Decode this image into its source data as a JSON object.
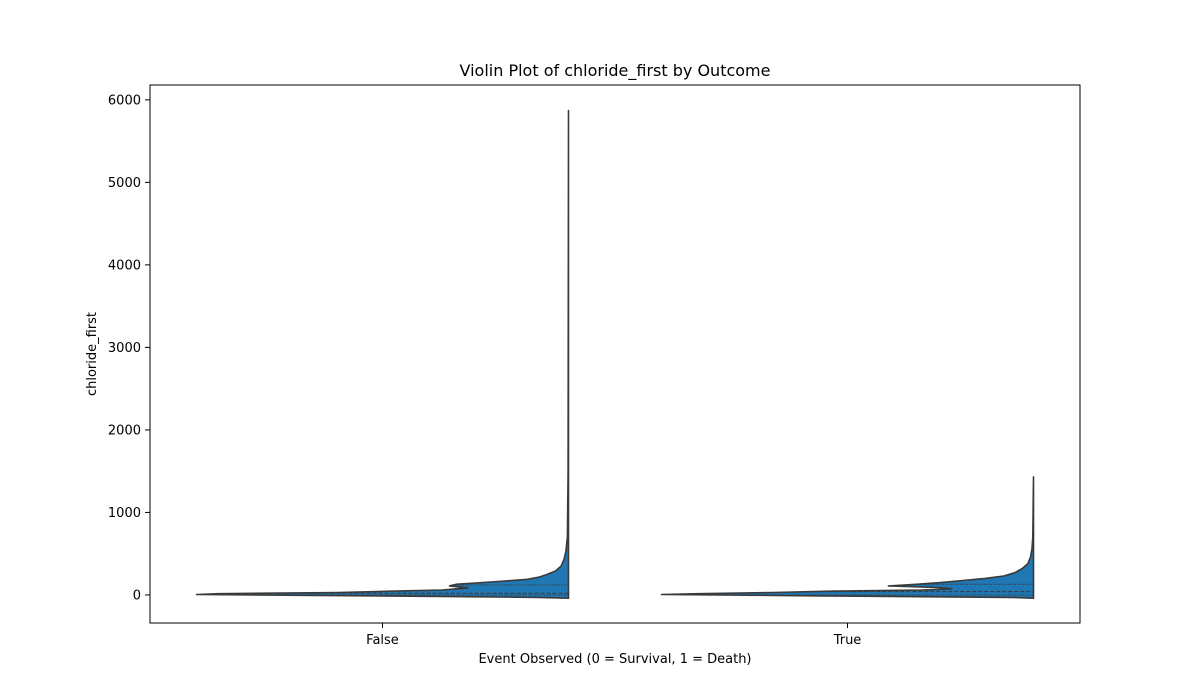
{
  "chart_data": {
    "type": "violin",
    "title": "Violin Plot of chloride_first by Outcome",
    "xlabel": "Event Observed (0 = Survival, 1 = Death)",
    "ylabel": "chloride_first",
    "categories": [
      "False",
      "True"
    ],
    "ylim": [
      -340,
      6180
    ],
    "yticks": [
      0,
      1000,
      2000,
      3000,
      4000,
      5000,
      6000
    ],
    "grid": false,
    "legend": false,
    "split": true,
    "colors": {
      "fill": "#1f77b4",
      "edge": "#3a3a3a",
      "axis": "#000000"
    },
    "groups": [
      {
        "category": "False",
        "y_min": -40,
        "y_max": 5870,
        "quartiles": [
          0,
          20,
          120
        ],
        "density_shape": [
          {
            "y": -40,
            "w": 0.0
          },
          {
            "y": -30,
            "w": 0.08
          },
          {
            "y": -10,
            "w": 0.55
          },
          {
            "y": 5,
            "w": 1.0
          },
          {
            "y": 15,
            "w": 0.94
          },
          {
            "y": 30,
            "w": 0.62
          },
          {
            "y": 45,
            "w": 0.48
          },
          {
            "y": 60,
            "w": 0.34
          },
          {
            "y": 75,
            "w": 0.3
          },
          {
            "y": 85,
            "w": 0.27
          },
          {
            "y": 110,
            "w": 0.32
          },
          {
            "y": 130,
            "w": 0.3
          },
          {
            "y": 145,
            "w": 0.25
          },
          {
            "y": 165,
            "w": 0.18
          },
          {
            "y": 190,
            "w": 0.11
          },
          {
            "y": 215,
            "w": 0.08
          },
          {
            "y": 245,
            "w": 0.06
          },
          {
            "y": 290,
            "w": 0.035
          },
          {
            "y": 350,
            "w": 0.02
          },
          {
            "y": 430,
            "w": 0.012
          },
          {
            "y": 530,
            "w": 0.007
          },
          {
            "y": 700,
            "w": 0.003
          },
          {
            "y": 1500,
            "w": 0.001
          },
          {
            "y": 5870,
            "w": 0.0
          }
        ]
      },
      {
        "category": "True",
        "y_min": -40,
        "y_max": 1430,
        "quartiles": [
          0,
          40,
          130
        ],
        "density_shape": [
          {
            "y": -40,
            "w": 0.0
          },
          {
            "y": -30,
            "w": 0.06
          },
          {
            "y": -10,
            "w": 0.6
          },
          {
            "y": 5,
            "w": 1.0
          },
          {
            "y": 15,
            "w": 0.9
          },
          {
            "y": 30,
            "w": 0.7
          },
          {
            "y": 45,
            "w": 0.55
          },
          {
            "y": 60,
            "w": 0.3
          },
          {
            "y": 75,
            "w": 0.22
          },
          {
            "y": 90,
            "w": 0.26
          },
          {
            "y": 110,
            "w": 0.39
          },
          {
            "y": 130,
            "w": 0.31
          },
          {
            "y": 150,
            "w": 0.25
          },
          {
            "y": 175,
            "w": 0.19
          },
          {
            "y": 200,
            "w": 0.13
          },
          {
            "y": 230,
            "w": 0.08
          },
          {
            "y": 270,
            "w": 0.05
          },
          {
            "y": 320,
            "w": 0.03
          },
          {
            "y": 380,
            "w": 0.015
          },
          {
            "y": 460,
            "w": 0.008
          },
          {
            "y": 560,
            "w": 0.004
          },
          {
            "y": 700,
            "w": 0.002
          },
          {
            "y": 1000,
            "w": 0.001
          },
          {
            "y": 1430,
            "w": 0.0
          }
        ]
      }
    ]
  }
}
